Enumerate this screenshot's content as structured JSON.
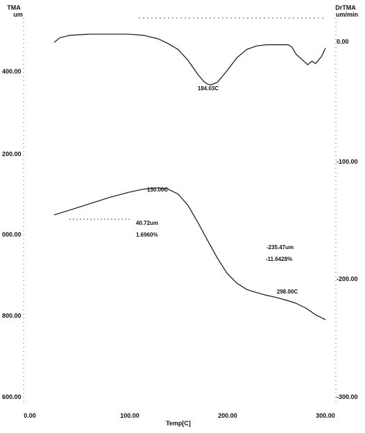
{
  "chart_data": {
    "type": "line",
    "xlabel": "Temp[C]",
    "x_ticks": [
      "0.00",
      "100.00",
      "200.00",
      "300.00"
    ],
    "x_tick_values": [
      0,
      100,
      200,
      300
    ],
    "xlim": [
      0,
      300
    ],
    "y_left": {
      "header": [
        "TMA",
        "um"
      ],
      "ticks": [
        "400.00",
        "200.00",
        "000.00",
        "800.00",
        "600.00"
      ],
      "tick_values": [
        1400,
        1200,
        1000,
        800,
        600
      ],
      "range": [
        600,
        1480
      ]
    },
    "y_right": {
      "header": [
        "DrTMA",
        "um/min"
      ],
      "ticks": [
        "0.00",
        "-100.00",
        "-200.00",
        "-300.00"
      ],
      "tick_values": [
        0,
        -100,
        -200,
        -300
      ],
      "range": [
        -300,
        10
      ]
    },
    "series": [
      {
        "axis": "right",
        "points": [
          [
            24,
            0
          ],
          [
            30,
            4
          ],
          [
            40,
            6
          ],
          [
            60,
            7
          ],
          [
            80,
            7
          ],
          [
            100,
            7
          ],
          [
            115,
            6
          ],
          [
            130,
            3
          ],
          [
            140,
            -1
          ],
          [
            150,
            -6
          ],
          [
            160,
            -15
          ],
          [
            170,
            -27
          ],
          [
            176,
            -33
          ],
          [
            180,
            -35.5
          ],
          [
            184,
            -36
          ],
          [
            190,
            -34
          ],
          [
            200,
            -24
          ],
          [
            210,
            -13
          ],
          [
            220,
            -6
          ],
          [
            230,
            -3
          ],
          [
            240,
            -2
          ],
          [
            250,
            -2
          ],
          [
            262,
            -2
          ],
          [
            266,
            -4
          ],
          [
            270,
            -10
          ],
          [
            274,
            -13
          ],
          [
            278,
            -16
          ],
          [
            282,
            -19
          ],
          [
            286,
            -16
          ],
          [
            290,
            -18
          ],
          [
            296,
            -12
          ],
          [
            300,
            -5
          ]
        ]
      },
      {
        "axis": "left",
        "points": [
          [
            24,
            1010
          ],
          [
            40,
            1021
          ],
          [
            60,
            1035
          ],
          [
            80,
            1049
          ],
          [
            100,
            1061
          ],
          [
            115,
            1068
          ],
          [
            130,
            1071
          ],
          [
            140,
            1068
          ],
          [
            150,
            1057
          ],
          [
            160,
            1032
          ],
          [
            170,
            994
          ],
          [
            180,
            953
          ],
          [
            190,
            913
          ],
          [
            200,
            878
          ],
          [
            210,
            856
          ],
          [
            220,
            842
          ],
          [
            230,
            835
          ],
          [
            240,
            829
          ],
          [
            250,
            824
          ],
          [
            260,
            818
          ],
          [
            270,
            811
          ],
          [
            280,
            800
          ],
          [
            290,
            785
          ],
          [
            300,
            774
          ]
        ]
      }
    ],
    "annotations": [
      "184.03C",
      "130.00C",
      "40.72um",
      "1.6960%",
      "-235.47um",
      "-11.6428%",
      "298.00C"
    ],
    "grid": false
  }
}
